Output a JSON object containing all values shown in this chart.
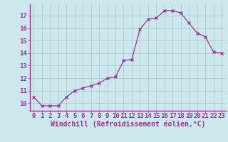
{
  "x": [
    0,
    1,
    2,
    3,
    4,
    5,
    6,
    7,
    8,
    9,
    10,
    11,
    12,
    13,
    14,
    15,
    16,
    17,
    18,
    19,
    20,
    21,
    22,
    23
  ],
  "y": [
    10.5,
    9.8,
    9.8,
    9.8,
    10.5,
    11.0,
    11.2,
    11.4,
    11.6,
    12.0,
    12.1,
    13.4,
    13.5,
    15.9,
    16.7,
    16.8,
    17.4,
    17.4,
    17.2,
    16.4,
    15.6,
    15.3,
    14.1,
    14.0
  ],
  "line_color": "#993399",
  "marker": "x",
  "bg_color": "#cce8ec",
  "grid_color": "#aacccc",
  "xlabel": "Windchill (Refroidissement éolien,°C)",
  "ylabel_ticks": [
    10,
    11,
    12,
    13,
    14,
    15,
    16,
    17
  ],
  "xlim": [
    -0.5,
    23.5
  ],
  "ylim": [
    9.4,
    17.9
  ],
  "xlabel_color": "#993399",
  "tick_color": "#993399",
  "axis_color": "#993399",
  "font": "monospace",
  "tick_fontsize": 6.5,
  "xlabel_fontsize": 7.0
}
